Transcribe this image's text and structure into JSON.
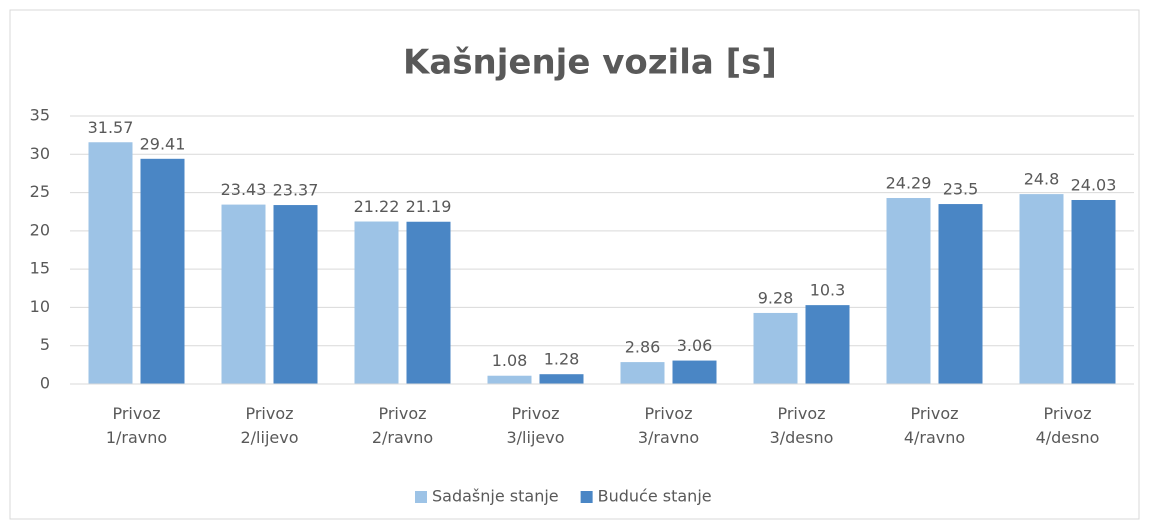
{
  "chart_data": {
    "type": "bar",
    "title": "Kašnjenje vozila [s]",
    "categories": [
      "Privoz 1/ravno",
      "Privoz 2/lijevo",
      "Privoz 2/ravno",
      "Privoz 3/lijevo",
      "Privoz 3/ravno",
      "Privoz 3/desno",
      "Privoz 4/ravno",
      "Privoz 4/desno"
    ],
    "series": [
      {
        "name": "Sadašnje stanje",
        "color": "#9dc3e6",
        "values": [
          31.57,
          23.43,
          21.22,
          1.08,
          2.86,
          9.28,
          24.29,
          24.8
        ]
      },
      {
        "name": "Buduće stanje",
        "color": "#4a86c5",
        "values": [
          29.41,
          23.37,
          21.19,
          1.28,
          3.06,
          10.3,
          23.5,
          24.03
        ]
      }
    ],
    "ylim": [
      0,
      35
    ],
    "yticks": [
      0,
      5,
      10,
      15,
      20,
      25,
      30,
      35
    ],
    "grid": true,
    "legend": "bottom"
  }
}
